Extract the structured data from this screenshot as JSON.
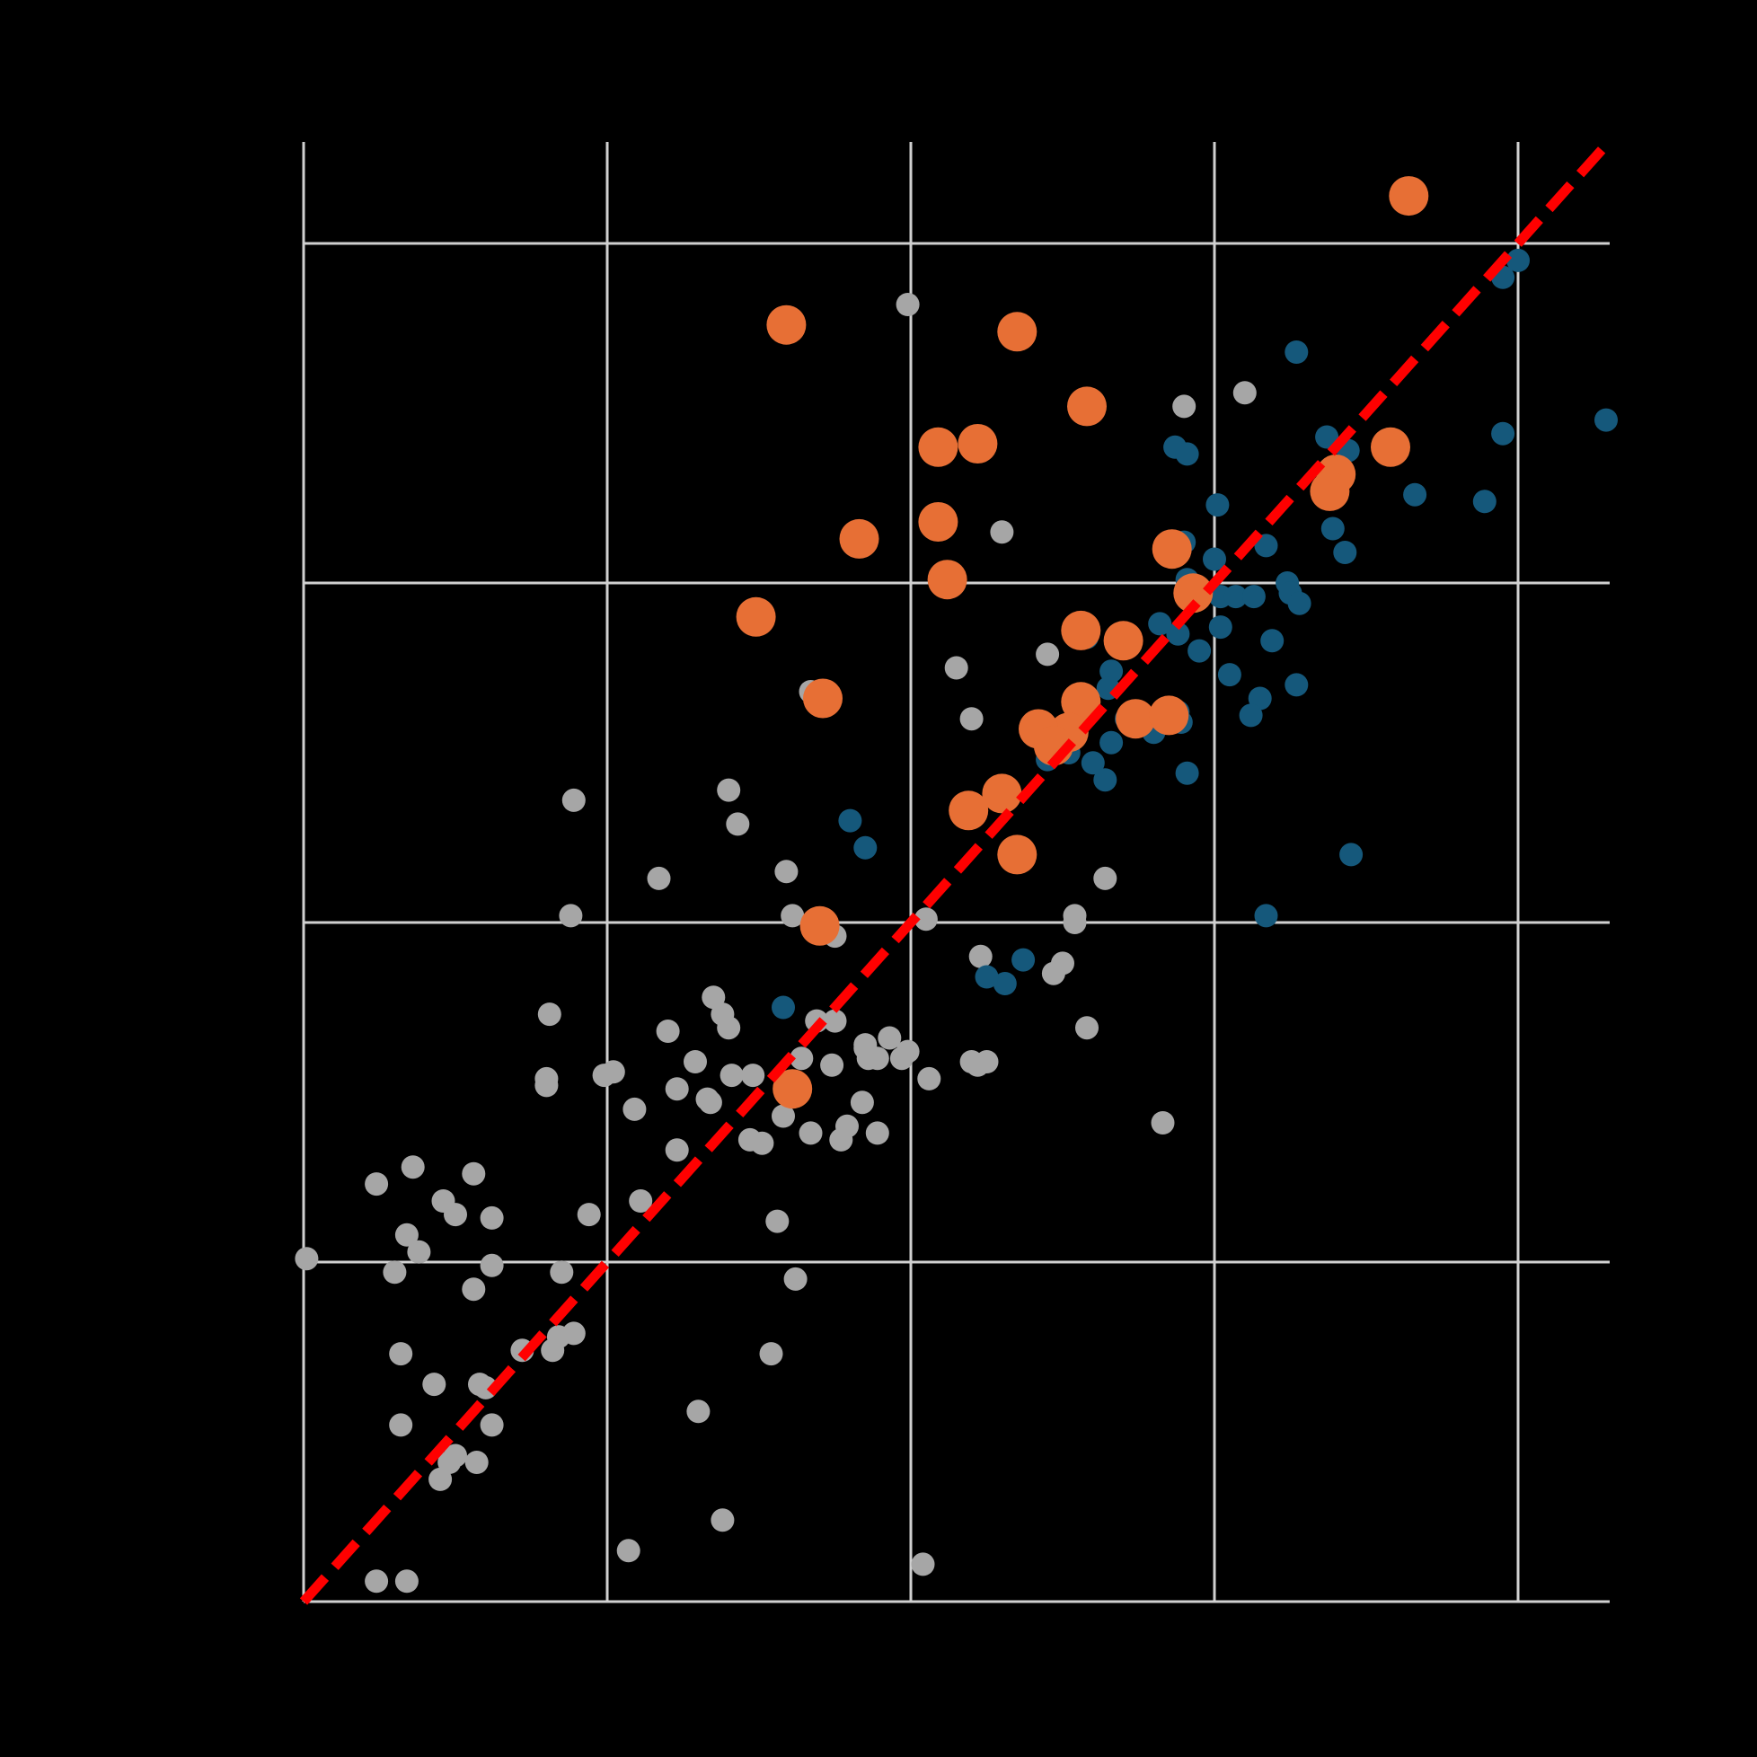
{
  "chart_data": {
    "type": "scatter",
    "title": "",
    "xlabel": "",
    "ylabel": "",
    "xlim": [
      0,
      4.3
    ],
    "ylim": [
      0,
      4.3
    ],
    "x_ticks": [
      0,
      1,
      2,
      3,
      4
    ],
    "y_ticks": [
      0,
      1,
      2,
      3,
      4
    ],
    "grid": true,
    "background": "#000000",
    "grid_color": "#d0d0d0",
    "reference_line": {
      "kind": "y = x",
      "style": "dashed",
      "color": "#ff0000"
    },
    "series": [
      {
        "color": "#a6a6a6",
        "size": "small",
        "points": [
          [
            1.99,
            3.82
          ],
          [
            2.9,
            3.52
          ],
          [
            3.1,
            3.56
          ],
          [
            2.3,
            3.15
          ],
          [
            2.15,
            2.75
          ],
          [
            2.2,
            2.6
          ],
          [
            2.45,
            2.79
          ],
          [
            1.67,
            2.68
          ],
          [
            0.89,
            2.36
          ],
          [
            1.4,
            2.39
          ],
          [
            1.43,
            2.29
          ],
          [
            1.17,
            2.13
          ],
          [
            1.59,
            2.15
          ],
          [
            2.83,
            1.41
          ],
          [
            0.88,
            2.02
          ],
          [
            1.61,
            2.02
          ],
          [
            1.75,
            1.96
          ],
          [
            2.05,
            2.01
          ],
          [
            2.64,
            2.13
          ],
          [
            2.54,
            2.02
          ],
          [
            2.5,
            1.88
          ],
          [
            2.47,
            1.85
          ],
          [
            2.58,
            1.69
          ],
          [
            2.54,
            2.0
          ],
          [
            2.23,
            1.9
          ],
          [
            1.35,
            1.78
          ],
          [
            1.38,
            1.73
          ],
          [
            0.81,
            1.73
          ],
          [
            1.4,
            1.69
          ],
          [
            1.93,
            1.66
          ],
          [
            1.2,
            1.68
          ],
          [
            1.85,
            1.64
          ],
          [
            1.99,
            1.62
          ],
          [
            2.06,
            1.54
          ],
          [
            1.69,
            1.71
          ],
          [
            1.75,
            1.71
          ],
          [
            1.64,
            1.6
          ],
          [
            1.86,
            1.6
          ],
          [
            1.29,
            1.59
          ],
          [
            1.02,
            1.56
          ],
          [
            0.8,
            1.54
          ],
          [
            0.8,
            1.52
          ],
          [
            1.48,
            1.55
          ],
          [
            1.33,
            1.48
          ],
          [
            1.41,
            1.55
          ],
          [
            1.09,
            1.45
          ],
          [
            1.89,
            1.6
          ],
          [
            1.74,
            1.58
          ],
          [
            1.85,
            1.63
          ],
          [
            1.97,
            1.6
          ],
          [
            2.2,
            1.59
          ],
          [
            2.22,
            1.58
          ],
          [
            2.25,
            1.59
          ],
          [
            1.84,
            1.47
          ],
          [
            1.23,
            1.51
          ],
          [
            0.99,
            1.55
          ],
          [
            1.23,
            1.33
          ],
          [
            1.34,
            1.47
          ],
          [
            1.58,
            1.43
          ],
          [
            1.51,
            1.35
          ],
          [
            1.79,
            1.4
          ],
          [
            1.89,
            1.38
          ],
          [
            1.77,
            1.36
          ],
          [
            1.67,
            1.38
          ],
          [
            1.47,
            1.36
          ],
          [
            0.24,
            1.23
          ],
          [
            0.36,
            1.28
          ],
          [
            0.56,
            1.26
          ],
          [
            0.46,
            1.18
          ],
          [
            0.5,
            1.14
          ],
          [
            0.62,
            1.13
          ],
          [
            0.94,
            1.14
          ],
          [
            1.11,
            1.18
          ],
          [
            0.01,
            1.01
          ],
          [
            0.34,
            1.08
          ],
          [
            1.56,
            1.12
          ],
          [
            0.38,
            1.03
          ],
          [
            0.62,
            0.99
          ],
          [
            0.3,
            0.97
          ],
          [
            0.56,
            0.92
          ],
          [
            0.85,
            0.97
          ],
          [
            1.62,
            0.95
          ],
          [
            0.82,
            0.74
          ],
          [
            0.72,
            0.74
          ],
          [
            0.32,
            0.73
          ],
          [
            0.6,
            0.63
          ],
          [
            0.58,
            0.64
          ],
          [
            1.54,
            0.73
          ],
          [
            0.84,
            0.78
          ],
          [
            0.89,
            0.79
          ],
          [
            0.43,
            0.64
          ],
          [
            0.32,
            0.52
          ],
          [
            0.62,
            0.52
          ],
          [
            1.3,
            0.56
          ],
          [
            0.48,
            0.41
          ],
          [
            0.5,
            0.43
          ],
          [
            0.57,
            0.41
          ],
          [
            0.45,
            0.36
          ],
          [
            0.24,
            0.06
          ],
          [
            0.34,
            0.06
          ],
          [
            1.38,
            0.24
          ],
          [
            1.07,
            0.15
          ],
          [
            2.04,
            0.11
          ]
        ]
      },
      {
        "color": "#15587b",
        "size": "medium",
        "points": [
          [
            3.95,
            3.9
          ],
          [
            4.0,
            3.95
          ],
          [
            3.27,
            3.68
          ],
          [
            3.37,
            3.43
          ],
          [
            3.95,
            3.44
          ],
          [
            3.44,
            3.39
          ],
          [
            2.87,
            3.4
          ],
          [
            2.91,
            3.38
          ],
          [
            3.01,
            3.23
          ],
          [
            3.89,
            3.24
          ],
          [
            4.29,
            3.48
          ],
          [
            3.66,
            3.26
          ],
          [
            3.17,
            3.11
          ],
          [
            3.39,
            3.16
          ],
          [
            3.43,
            3.09
          ],
          [
            2.91,
            3.01
          ],
          [
            2.9,
            3.12
          ],
          [
            3.0,
            3.07
          ],
          [
            3.02,
            2.96
          ],
          [
            3.07,
            2.96
          ],
          [
            3.13,
            2.96
          ],
          [
            3.24,
            3.0
          ],
          [
            3.25,
            2.97
          ],
          [
            3.28,
            2.94
          ],
          [
            3.19,
            2.83
          ],
          [
            3.27,
            2.7
          ],
          [
            2.66,
            2.74
          ],
          [
            2.88,
            2.85
          ],
          [
            2.82,
            2.88
          ],
          [
            2.58,
            2.84
          ],
          [
            2.65,
            2.69
          ],
          [
            3.02,
            2.87
          ],
          [
            2.95,
            2.8
          ],
          [
            3.05,
            2.73
          ],
          [
            3.15,
            2.66
          ],
          [
            3.12,
            2.61
          ],
          [
            2.89,
            2.59
          ],
          [
            2.71,
            2.6
          ],
          [
            2.8,
            2.56
          ],
          [
            2.43,
            2.57
          ],
          [
            2.45,
            2.48
          ],
          [
            2.52,
            2.5
          ],
          [
            2.6,
            2.47
          ],
          [
            2.64,
            2.42
          ],
          [
            2.66,
            2.53
          ],
          [
            2.91,
            2.44
          ],
          [
            2.88,
            2.62
          ],
          [
            1.8,
            2.3
          ],
          [
            1.85,
            2.22
          ],
          [
            3.45,
            2.2
          ],
          [
            3.17,
            2.02
          ],
          [
            2.37,
            1.89
          ],
          [
            2.31,
            1.82
          ],
          [
            2.25,
            1.84
          ],
          [
            1.58,
            1.75
          ]
        ]
      },
      {
        "color": "#e76f35",
        "size": "large",
        "points": [
          [
            3.64,
            4.14
          ],
          [
            1.59,
            3.76
          ],
          [
            2.35,
            3.74
          ],
          [
            2.58,
            3.52
          ],
          [
            2.22,
            3.41
          ],
          [
            2.09,
            3.4
          ],
          [
            3.58,
            3.4
          ],
          [
            3.4,
            3.32
          ],
          [
            3.38,
            3.27
          ],
          [
            2.09,
            3.18
          ],
          [
            1.83,
            3.13
          ],
          [
            2.12,
            3.01
          ],
          [
            2.86,
            3.1
          ],
          [
            2.93,
            2.97
          ],
          [
            2.56,
            2.86
          ],
          [
            1.49,
            2.9
          ],
          [
            2.7,
            2.83
          ],
          [
            1.71,
            2.66
          ],
          [
            2.56,
            2.65
          ],
          [
            2.52,
            2.56
          ],
          [
            2.74,
            2.6
          ],
          [
            2.85,
            2.61
          ],
          [
            2.42,
            2.57
          ],
          [
            2.47,
            2.52
          ],
          [
            2.3,
            2.38
          ],
          [
            2.19,
            2.33
          ],
          [
            2.35,
            2.2
          ],
          [
            1.7,
            1.99
          ],
          [
            1.61,
            1.51
          ]
        ]
      }
    ]
  }
}
